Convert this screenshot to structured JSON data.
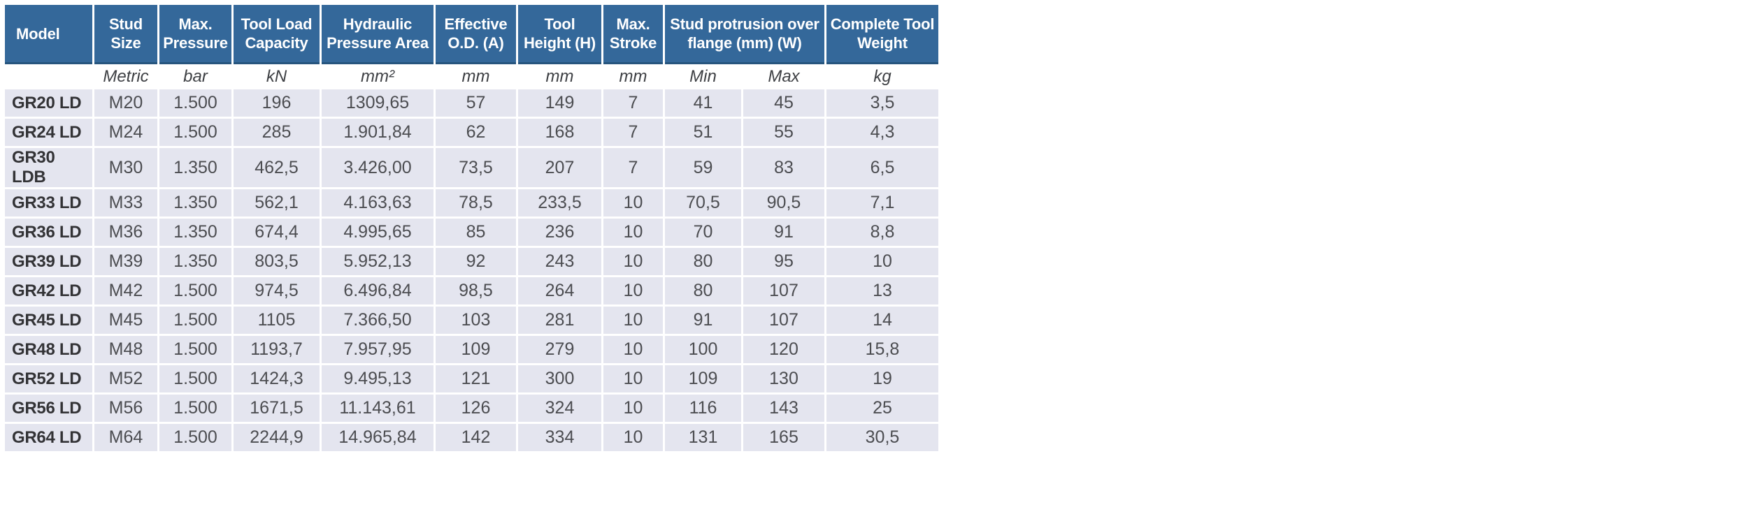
{
  "colors": {
    "header_bg": "#34689a",
    "header_border_bottom": "#27557e",
    "header_text": "#ffffff",
    "row_bg": "#e4e5ef",
    "data_text": "#4c4d51",
    "model_text": "#333336"
  },
  "table": {
    "headers": [
      {
        "label": "Model",
        "colspan": 1
      },
      {
        "label": "Stud Size",
        "colspan": 1
      },
      {
        "label": "Max. Pressure",
        "colspan": 1
      },
      {
        "label": "Tool Load Capacity",
        "colspan": 1
      },
      {
        "label": "Hydraulic Pressure Area",
        "colspan": 1
      },
      {
        "label": "Effective O.D. (A)",
        "colspan": 1
      },
      {
        "label": "Tool Height (H)",
        "colspan": 1
      },
      {
        "label": "Max. Stroke",
        "colspan": 1
      },
      {
        "label": "Stud protrusion over flange (mm) (W)",
        "colspan": 2
      },
      {
        "label": "Complete Tool Weight",
        "colspan": 1
      }
    ],
    "units": [
      "",
      "Metric",
      "bar",
      "kN",
      "mm²",
      "mm",
      "mm",
      "mm",
      "Min",
      "Max",
      "kg"
    ],
    "rows": [
      [
        "GR20 LD",
        "M20",
        "1.500",
        "196",
        "1309,65",
        "57",
        "149",
        "7",
        "41",
        "45",
        "3,5"
      ],
      [
        "GR24 LD",
        "M24",
        "1.500",
        "285",
        "1.901,84",
        "62",
        "168",
        "7",
        "51",
        "55",
        "4,3"
      ],
      [
        "GR30 LDB",
        "M30",
        "1.350",
        "462,5",
        "3.426,00",
        "73,5",
        "207",
        "7",
        "59",
        "83",
        "6,5"
      ],
      [
        "GR33 LD",
        "M33",
        "1.350",
        "562,1",
        "4.163,63",
        "78,5",
        "233,5",
        "10",
        "70,5",
        "90,5",
        "7,1"
      ],
      [
        "GR36 LD",
        "M36",
        "1.350",
        "674,4",
        "4.995,65",
        "85",
        "236",
        "10",
        "70",
        "91",
        "8,8"
      ],
      [
        "GR39 LD",
        "M39",
        "1.350",
        "803,5",
        "5.952,13",
        "92",
        "243",
        "10",
        "80",
        "95",
        "10"
      ],
      [
        "GR42 LD",
        "M42",
        "1.500",
        "974,5",
        "6.496,84",
        "98,5",
        "264",
        "10",
        "80",
        "107",
        "13"
      ],
      [
        "GR45 LD",
        "M45",
        "1.500",
        "1105",
        "7.366,50",
        "103",
        "281",
        "10",
        "91",
        "107",
        "14"
      ],
      [
        "GR48 LD",
        "M48",
        "1.500",
        "1193,7",
        "7.957,95",
        "109",
        "279",
        "10",
        "100",
        "120",
        "15,8"
      ],
      [
        "GR52 LD",
        "M52",
        "1.500",
        "1424,3",
        "9.495,13",
        "121",
        "300",
        "10",
        "109",
        "130",
        "19"
      ],
      [
        "GR56 LD",
        "M56",
        "1.500",
        "1671,5",
        "11.143,61",
        "126",
        "324",
        "10",
        "116",
        "143",
        "25"
      ],
      [
        "GR64 LD",
        "M64",
        "1.500",
        "2244,9",
        "14.965,84",
        "142",
        "334",
        "10",
        "131",
        "165",
        "30,5"
      ]
    ]
  }
}
